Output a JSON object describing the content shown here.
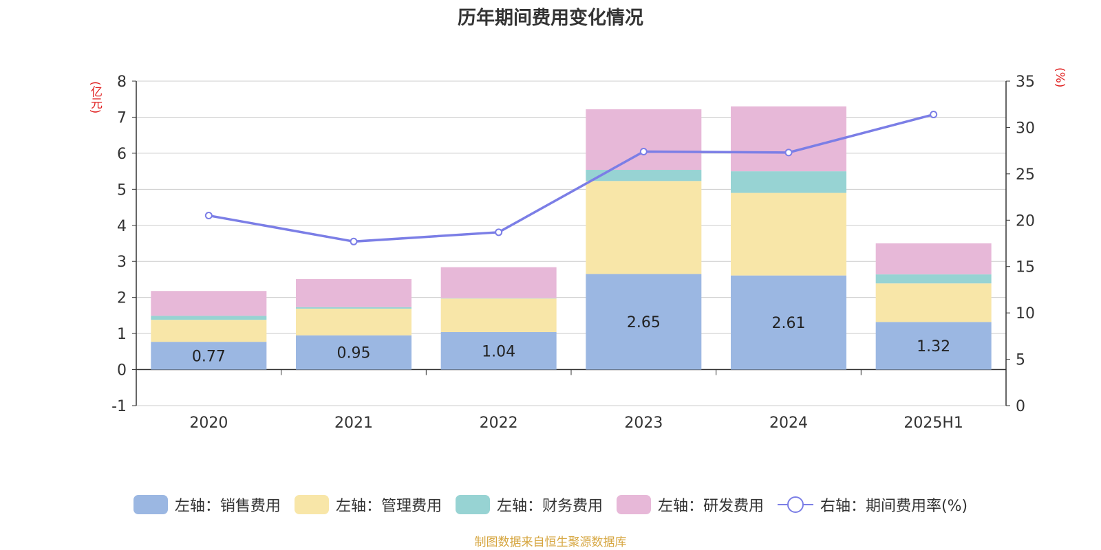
{
  "title": "历年期间费用变化情况",
  "source": "制图数据来自恒生聚源数据库",
  "colors": {
    "sales": "#9bb7e2",
    "admin": "#f8e6a8",
    "finance": "#97d3d3",
    "rnd": "#e7b8d8",
    "rate": "#7b7ee6",
    "unit": "#e02020",
    "source": "#d6a640"
  },
  "chart_data": {
    "type": "bar",
    "stacked": true,
    "categories": [
      "2020",
      "2021",
      "2022",
      "2023",
      "2024",
      "2025H1"
    ],
    "left_axis": {
      "unit": "(亿元)",
      "ylim": [
        -1,
        8
      ],
      "ticks": [
        -1,
        0,
        1,
        2,
        3,
        4,
        5,
        6,
        7,
        8
      ]
    },
    "right_axis": {
      "unit": "(%)",
      "ylim": [
        0,
        35
      ],
      "ticks": [
        0,
        5,
        10,
        15,
        20,
        25,
        30,
        35
      ]
    },
    "series": [
      {
        "name": "左轴：销售费用",
        "key": "sales",
        "axis": "left",
        "values": [
          0.77,
          0.95,
          1.04,
          2.65,
          2.61,
          1.32
        ],
        "labels": [
          "0.77",
          "0.95",
          "1.04",
          "2.65",
          "2.61",
          "1.32"
        ]
      },
      {
        "name": "左轴：管理费用",
        "key": "admin",
        "axis": "left",
        "values": [
          0.61,
          0.74,
          0.93,
          2.58,
          2.29,
          1.07
        ]
      },
      {
        "name": "左轴：财务费用",
        "key": "finance",
        "axis": "left",
        "values": [
          0.11,
          0.04,
          0.01,
          0.31,
          0.6,
          0.25
        ]
      },
      {
        "name": "左轴：研发费用",
        "key": "rnd",
        "axis": "left",
        "values": [
          0.69,
          0.78,
          0.86,
          1.68,
          1.8,
          0.86
        ]
      },
      {
        "name": "右轴：期间费用率(%)",
        "key": "rate",
        "axis": "right",
        "type": "line",
        "values": [
          20.5,
          17.7,
          18.7,
          27.4,
          27.3,
          31.4
        ]
      }
    ],
    "grid": true,
    "legend_position": "bottom"
  }
}
